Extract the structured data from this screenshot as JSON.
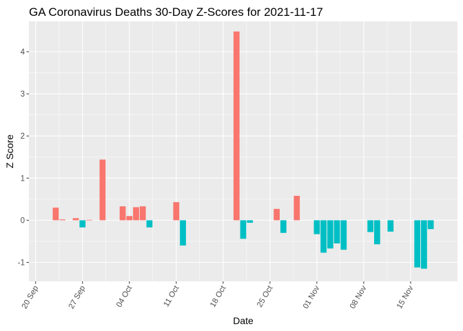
{
  "chart_data": {
    "type": "bar",
    "title": "GA Coronavirus Deaths 30-Day Z-Scores for 2021-11-17",
    "xlabel": "Date",
    "ylabel": "Z Score",
    "ylim": [
      -1.45,
      4.72
    ],
    "y_ticks": [
      -1,
      0,
      1,
      2,
      3,
      4
    ],
    "x_range": [
      "2021-09-19",
      "2021-11-22"
    ],
    "x_ticks": [
      {
        "date": "2021-09-20",
        "label": "20 Sep"
      },
      {
        "date": "2021-09-27",
        "label": "27 Sep"
      },
      {
        "date": "2021-10-04",
        "label": "04 Oct"
      },
      {
        "date": "2021-10-11",
        "label": "11 Oct"
      },
      {
        "date": "2021-10-18",
        "label": "18 Oct"
      },
      {
        "date": "2021-10-25",
        "label": "25 Oct"
      },
      {
        "date": "2021-11-01",
        "label": "01 Nov"
      },
      {
        "date": "2021-11-08",
        "label": "08 Nov"
      },
      {
        "date": "2021-11-15",
        "label": "15 Nov"
      }
    ],
    "grid": true,
    "legend": "none",
    "colors": {
      "positive": "#F8766D",
      "negative": "#00BFC4",
      "panel": "#EBEBEB"
    },
    "points": [
      {
        "date": "2021-09-23",
        "value": 0.3
      },
      {
        "date": "2021-09-24",
        "value": 0.02
      },
      {
        "date": "2021-09-26",
        "value": 0.05
      },
      {
        "date": "2021-09-27",
        "value": -0.17
      },
      {
        "date": "2021-09-28",
        "value": 0.01
      },
      {
        "date": "2021-09-30",
        "value": 1.44
      },
      {
        "date": "2021-10-03",
        "value": 0.33
      },
      {
        "date": "2021-10-04",
        "value": 0.1
      },
      {
        "date": "2021-10-05",
        "value": 0.31
      },
      {
        "date": "2021-10-06",
        "value": 0.33
      },
      {
        "date": "2021-10-07",
        "value": -0.17
      },
      {
        "date": "2021-10-11",
        "value": 0.43
      },
      {
        "date": "2021-10-12",
        "value": -0.6
      },
      {
        "date": "2021-10-20",
        "value": 4.48
      },
      {
        "date": "2021-10-21",
        "value": -0.44
      },
      {
        "date": "2021-10-22",
        "value": -0.06
      },
      {
        "date": "2021-10-26",
        "value": 0.27
      },
      {
        "date": "2021-10-27",
        "value": -0.3
      },
      {
        "date": "2021-10-29",
        "value": 0.58
      },
      {
        "date": "2021-11-01",
        "value": -0.33
      },
      {
        "date": "2021-11-02",
        "value": -0.77
      },
      {
        "date": "2021-11-03",
        "value": -0.67
      },
      {
        "date": "2021-11-04",
        "value": -0.55
      },
      {
        "date": "2021-11-05",
        "value": -0.7
      },
      {
        "date": "2021-11-09",
        "value": -0.28
      },
      {
        "date": "2021-11-10",
        "value": -0.57
      },
      {
        "date": "2021-11-12",
        "value": -0.27
      },
      {
        "date": "2021-11-16",
        "value": -1.12
      },
      {
        "date": "2021-11-17",
        "value": -1.15
      },
      {
        "date": "2021-11-18",
        "value": -0.21
      }
    ]
  }
}
